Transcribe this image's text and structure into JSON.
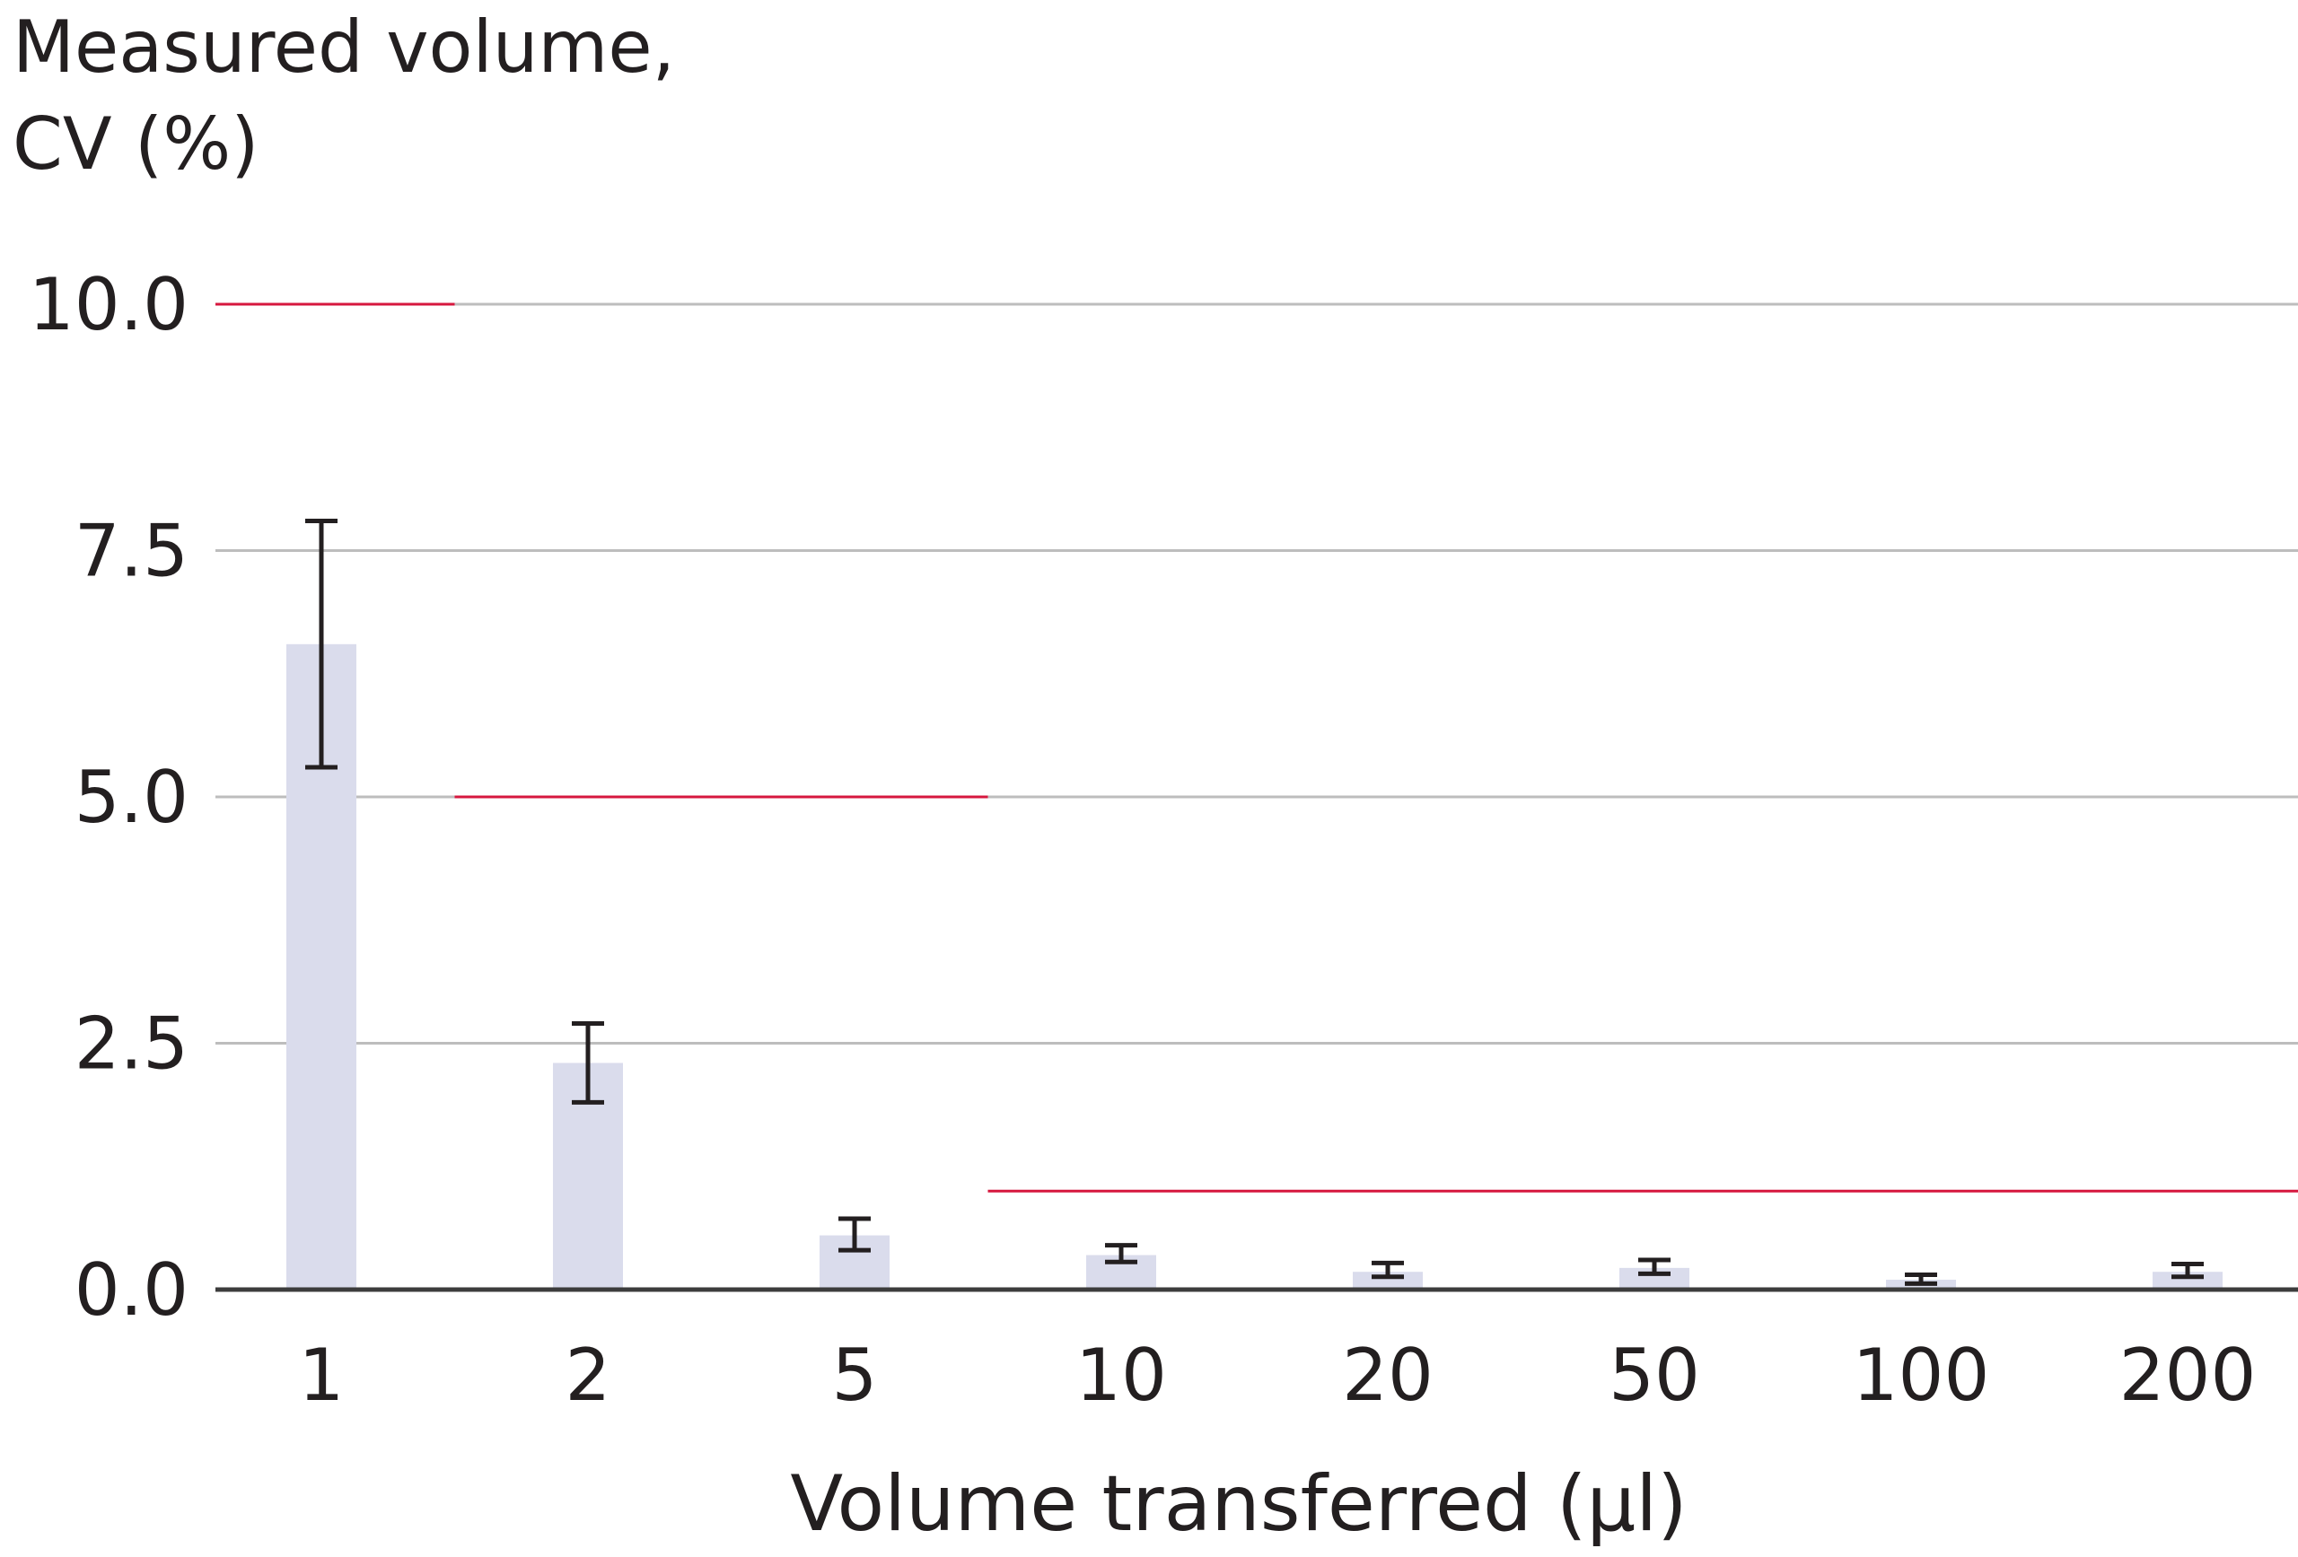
{
  "chart_data": {
    "type": "bar",
    "ylabel_lines": [
      "Measured volume,",
      "CV (%)"
    ],
    "xlabel": "Volume transferred (µl)",
    "categories": [
      "1",
      "2",
      "5",
      "10",
      "20",
      "50",
      "100",
      "200"
    ],
    "values": [
      6.55,
      2.3,
      0.55,
      0.35,
      0.18,
      0.22,
      0.1,
      0.18
    ],
    "error_low": [
      5.3,
      1.9,
      0.4,
      0.28,
      0.13,
      0.16,
      0.06,
      0.13
    ],
    "error_high": [
      7.8,
      2.7,
      0.72,
      0.45,
      0.27,
      0.3,
      0.15,
      0.26
    ],
    "ylim": [
      0,
      10
    ],
    "yticks": [
      0,
      2.5,
      5,
      7.5,
      10
    ],
    "ytick_labels": [
      "0.0",
      "2.5",
      "5.0",
      "7.5",
      "10.0"
    ],
    "limit_lines": [
      {
        "categories": [
          "1"
        ],
        "value": 10
      },
      {
        "categories": [
          "2",
          "5"
        ],
        "value": 5
      },
      {
        "categories": [
          "10",
          "20",
          "50",
          "100",
          "200"
        ],
        "value": 1
      }
    ],
    "grid": true,
    "colors": {
      "bar": "#dadcec",
      "error_bar": "#231f20",
      "grid": "#bdbdbd",
      "axis": "#3c3c3c",
      "limit_line": "#d6173e"
    }
  }
}
